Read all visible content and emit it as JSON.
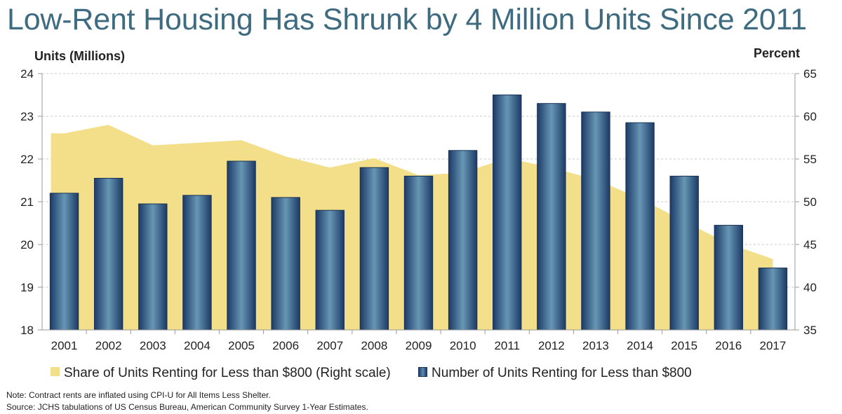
{
  "title": "Low-Rent Housing Has Shrunk by 4 Million Units Since 2011",
  "chart_data": {
    "type": "bar",
    "ylabel_left": "Units (Millions)",
    "ylabel_right": "Percent",
    "categories": [
      "2001",
      "2002",
      "2003",
      "2004",
      "2005",
      "2006",
      "2007",
      "2008",
      "2009",
      "2010",
      "2011",
      "2012",
      "2013",
      "2014",
      "2015",
      "2016",
      "2017"
    ],
    "left_axis": {
      "ylim": [
        18,
        24
      ],
      "ticks": [
        18,
        19,
        20,
        21,
        22,
        23,
        24
      ]
    },
    "right_axis": {
      "ylim": [
        35,
        65
      ],
      "ticks": [
        35,
        40,
        45,
        50,
        55,
        60,
        65
      ]
    },
    "grid": true,
    "series": [
      {
        "name": "Number of Units Renting for Less than $800",
        "type": "bar",
        "axis": "left",
        "values": [
          21.2,
          21.55,
          20.95,
          21.15,
          21.95,
          21.1,
          20.8,
          21.8,
          21.6,
          22.2,
          23.5,
          23.3,
          23.1,
          22.85,
          21.6,
          20.45,
          19.45
        ],
        "color": "#2b5279"
      },
      {
        "name": "Share of Units Renting for Less than $800 (Right scale)",
        "type": "area",
        "axis": "right",
        "values": [
          58.0,
          59.0,
          56.6,
          56.9,
          57.2,
          55.3,
          54.0,
          55.1,
          53.1,
          53.4,
          55.1,
          54.0,
          52.6,
          50.4,
          47.7,
          45.1,
          43.3
        ],
        "color": "#f3de8a"
      }
    ],
    "legend_position": "bottom"
  },
  "legend": {
    "area_label": "Share of Units Renting for Less than $800 (Right scale)",
    "bar_label": "Number of Units Renting for Less than $800"
  },
  "notes": {
    "line1": "Note: Contract rents are inflated using CPI-U for All Items Less Shelter.",
    "line2": "Source: JCHS tabulations of US Census Bureau, American Community Survey 1-Year Estimates."
  }
}
